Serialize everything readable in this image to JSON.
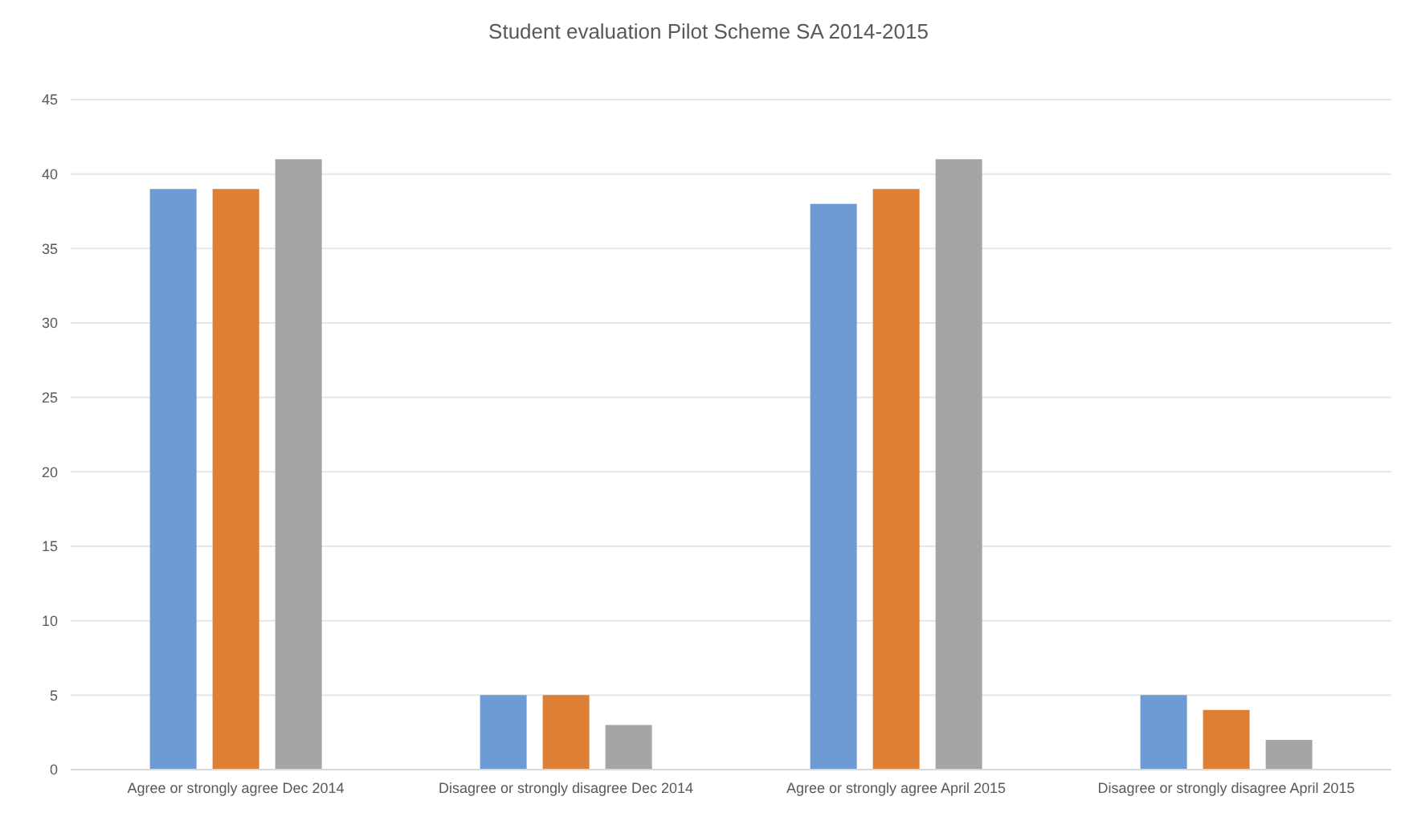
{
  "chart_data": {
    "type": "bar",
    "title": "Student evaluation Pilot Scheme SA 2014-2015",
    "categories": [
      "Agree or strongly agree Dec 2014",
      "Disagree or strongly disagree Dec 2014",
      "Agree or strongly agree April 2015",
      "Disagree or strongly disagree April 2015"
    ],
    "series": [
      {
        "color": "#6f9bd4",
        "values": [
          39,
          5,
          38,
          5
        ]
      },
      {
        "color": "#dd7f34",
        "values": [
          39,
          5,
          39,
          4
        ]
      },
      {
        "color": "#a5a5a5",
        "values": [
          41,
          3,
          41,
          2
        ]
      }
    ],
    "ylim": [
      0,
      45
    ],
    "yticks": [
      0,
      5,
      10,
      15,
      20,
      25,
      30,
      35,
      40,
      45
    ],
    "grid": "y"
  }
}
